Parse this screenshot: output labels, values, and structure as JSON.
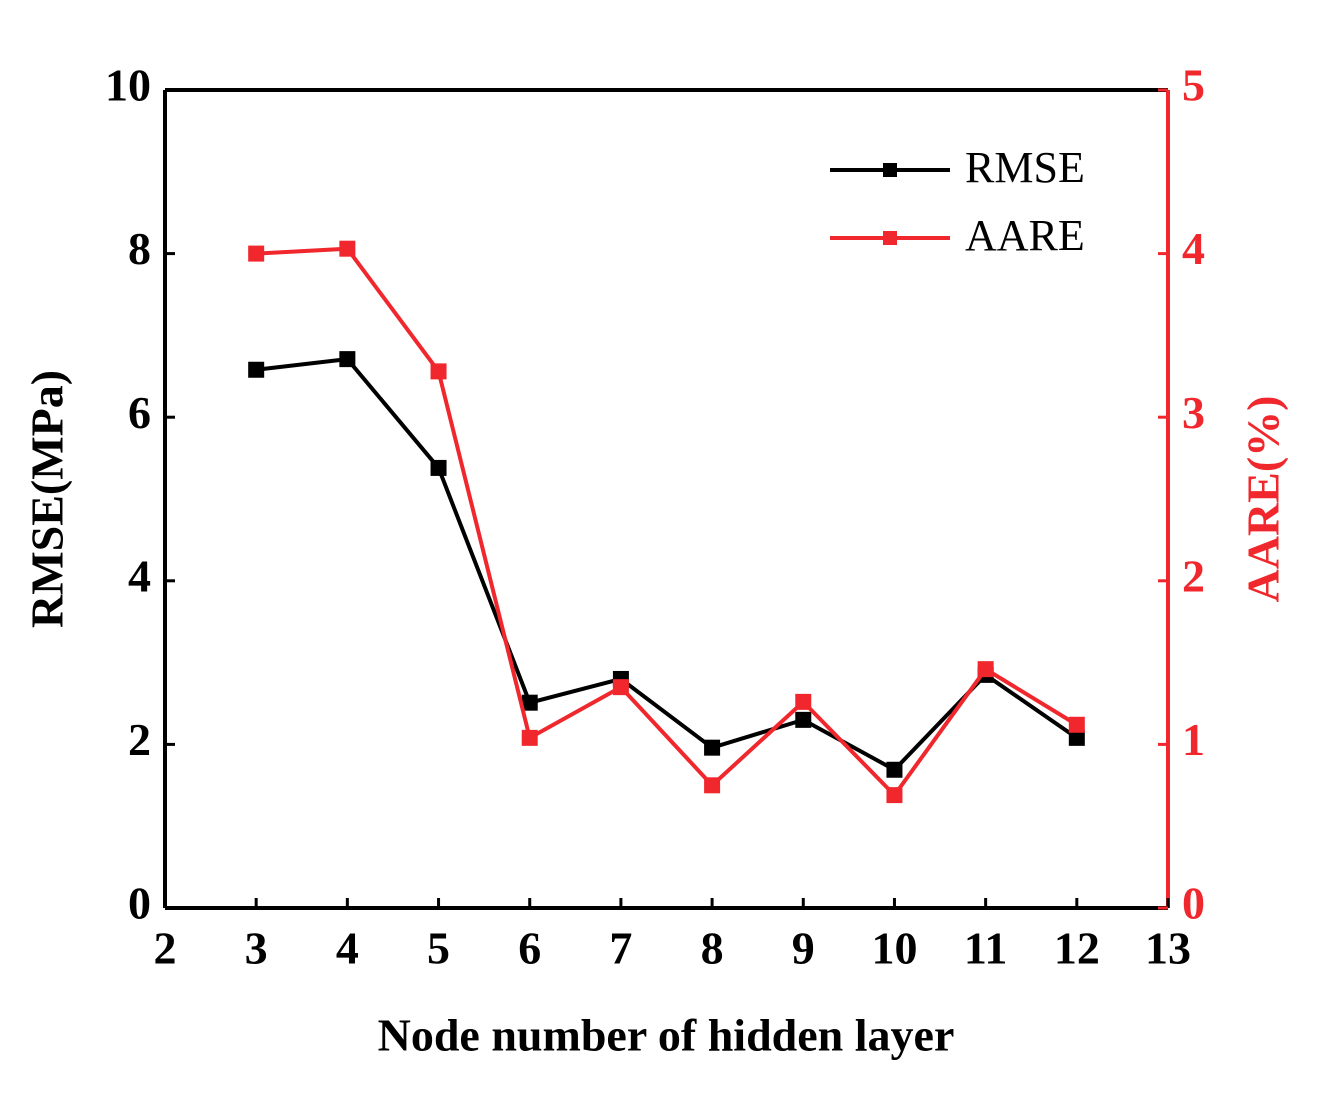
{
  "chart_data": {
    "type": "line",
    "xlabel": "Node number of hidden layer",
    "ylabel": "RMSE(MPa)",
    "y2label": "AARE(%)",
    "x": [
      3,
      4,
      5,
      6,
      7,
      8,
      9,
      10,
      11,
      12
    ],
    "series": [
      {
        "name": "RMSE",
        "color": "#000000",
        "values": [
          6.58,
          6.71,
          5.38,
          2.51,
          2.8,
          1.96,
          2.3,
          1.69,
          2.85,
          2.08
        ]
      },
      {
        "name": "AARE",
        "color": "#f0282d",
        "axis": "y2",
        "values": [
          4.0,
          4.03,
          3.28,
          1.04,
          1.35,
          0.75,
          1.26,
          0.69,
          1.46,
          1.12
        ]
      }
    ],
    "xlim": [
      2,
      13
    ],
    "xticks": [
      2,
      3,
      4,
      5,
      6,
      7,
      8,
      9,
      10,
      11,
      12,
      13
    ],
    "ylim": [
      0,
      10
    ],
    "yticks": [
      0,
      2,
      4,
      6,
      8,
      10
    ],
    "y2lim": [
      0,
      5
    ],
    "y2ticks": [
      0,
      1,
      2,
      3,
      4,
      5
    ],
    "y2color": "#f0282d",
    "legend": "upper right"
  }
}
